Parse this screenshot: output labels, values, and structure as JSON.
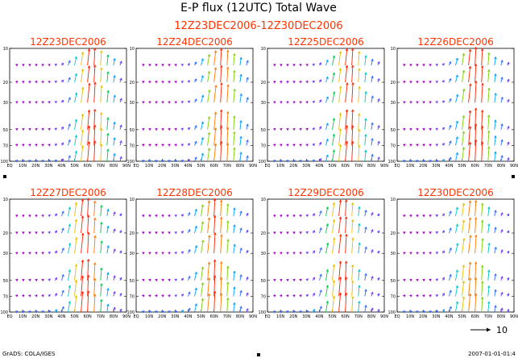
{
  "title": "E-P flux (12UTC) Total Wave",
  "subtitle": "12Z23DEC2006-12Z30DEC2006",
  "footer_left": "GrADS: COLA/IGES",
  "footer_right": "2007-01-01-01:4",
  "reference_vector": {
    "label": "10",
    "value": 10
  },
  "colors": {
    "title": "#000000",
    "panel_title": "#ff3300",
    "subtitle": "#ff3300"
  },
  "chart_data": [
    {
      "type": "vector-field",
      "title": "12Z23DEC2006",
      "x_tick_labels": [
        "EQ",
        "10N",
        "20N",
        "30N",
        "40N",
        "50N",
        "60N",
        "70N",
        "80N",
        "90N"
      ],
      "y_tick_labels": [
        "10",
        "20",
        "30",
        "50",
        "70",
        "100"
      ],
      "x_units": "latitude (deg N)",
      "y_units": "pressure (hPa)",
      "ylim": [
        100,
        10
      ],
      "xlim": [
        0,
        90
      ],
      "wave_center_lat": 63,
      "amplitude": 1.0
    },
    {
      "type": "vector-field",
      "title": "12Z24DEC2006",
      "x_tick_labels": [
        "EQ",
        "10N",
        "20N",
        "30N",
        "40N",
        "50N",
        "60N",
        "70N",
        "80N",
        "90N"
      ],
      "y_tick_labels": [
        "10",
        "20",
        "30",
        "50",
        "70",
        "100"
      ],
      "ylim": [
        100,
        10
      ],
      "xlim": [
        0,
        90
      ],
      "wave_center_lat": 65,
      "amplitude": 0.95
    },
    {
      "type": "vector-field",
      "title": "12Z25DEC2006",
      "x_tick_labels": [
        "EQ",
        "10N",
        "20N",
        "30N",
        "40N",
        "50N",
        "60N",
        "70N",
        "80N",
        "90N"
      ],
      "y_tick_labels": [
        "10",
        "20",
        "30",
        "50",
        "70",
        "100"
      ],
      "ylim": [
        100,
        10
      ],
      "xlim": [
        0,
        90
      ],
      "wave_center_lat": 62,
      "amplitude": 1.0
    },
    {
      "type": "vector-field",
      "title": "12Z26DEC2006",
      "x_tick_labels": [
        "EQ",
        "10N",
        "20N",
        "30N",
        "40N",
        "50N",
        "60N",
        "70N",
        "80N",
        "90N"
      ],
      "y_tick_labels": [
        "10",
        "20",
        "30",
        "50",
        "70",
        "100"
      ],
      "ylim": [
        100,
        10
      ],
      "xlim": [
        0,
        90
      ],
      "wave_center_lat": 60,
      "amplitude": 1.05
    },
    {
      "type": "vector-field",
      "title": "12Z27DEC2006",
      "x_tick_labels": [
        "EQ",
        "10N",
        "20N",
        "30N",
        "40N",
        "50N",
        "60N",
        "70N",
        "80N",
        "90N"
      ],
      "y_tick_labels": [
        "10",
        "20",
        "30",
        "50",
        "70",
        "100"
      ],
      "ylim": [
        100,
        10
      ],
      "xlim": [
        0,
        90
      ],
      "wave_center_lat": 58,
      "amplitude": 1.05
    },
    {
      "type": "vector-field",
      "title": "12Z28DEC2006",
      "x_tick_labels": [
        "EQ",
        "10N",
        "20N",
        "30N",
        "40N",
        "50N",
        "60N",
        "70N",
        "80N",
        "90N"
      ],
      "y_tick_labels": [
        "10",
        "20",
        "30",
        "50",
        "70",
        "100"
      ],
      "ylim": [
        100,
        10
      ],
      "xlim": [
        0,
        90
      ],
      "wave_center_lat": 60,
      "amplitude": 1.0
    },
    {
      "type": "vector-field",
      "title": "12Z29DEC2006",
      "x_tick_labels": [
        "EQ",
        "10N",
        "20N",
        "30N",
        "40N",
        "50N",
        "60N",
        "70N",
        "80N",
        "90N"
      ],
      "y_tick_labels": [
        "10",
        "20",
        "30",
        "50",
        "70",
        "100"
      ],
      "ylim": [
        100,
        10
      ],
      "xlim": [
        0,
        90
      ],
      "wave_center_lat": 57,
      "amplitude": 0.95
    },
    {
      "type": "vector-field",
      "title": "12Z30DEC2006",
      "x_tick_labels": [
        "EQ",
        "10N",
        "20N",
        "30N",
        "40N",
        "50N",
        "60N",
        "70N",
        "80N",
        "90N"
      ],
      "y_tick_labels": [
        "10",
        "20",
        "30",
        "50",
        "70",
        "100"
      ],
      "ylim": [
        100,
        10
      ],
      "xlim": [
        0,
        90
      ],
      "wave_center_lat": 57,
      "amplitude": 0.9
    }
  ]
}
